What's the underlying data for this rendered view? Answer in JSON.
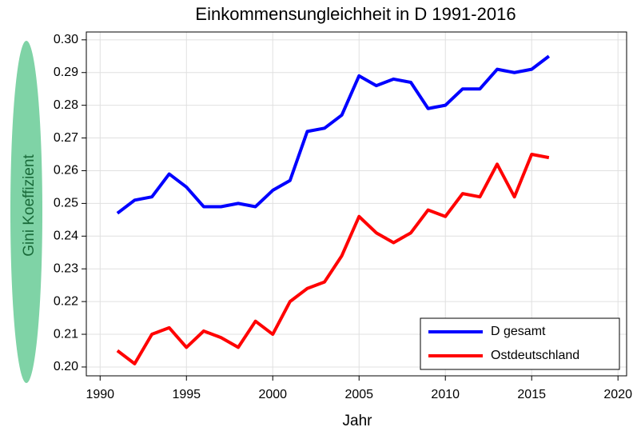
{
  "chart_data": {
    "type": "line",
    "title": "Einkommensungleichheit in D 1991-2016",
    "x_label": "Jahr",
    "y_label": "Gini Koeffizient",
    "x": [
      1991,
      1992,
      1993,
      1994,
      1995,
      1996,
      1997,
      1998,
      1999,
      2000,
      2001,
      2002,
      2003,
      2004,
      2005,
      2006,
      2007,
      2008,
      2009,
      2010,
      2011,
      2012,
      2013,
      2014,
      2015,
      2016
    ],
    "series": [
      {
        "name": "D gesamt",
        "color": "#0000ff",
        "values": [
          0.247,
          0.251,
          0.252,
          0.259,
          0.255,
          0.249,
          0.249,
          0.25,
          0.249,
          0.254,
          0.257,
          0.272,
          0.273,
          0.277,
          0.289,
          0.286,
          0.288,
          0.287,
          0.279,
          0.28,
          0.285,
          0.285,
          0.291,
          0.29,
          0.291,
          0.295
        ]
      },
      {
        "name": "Ostdeutschland",
        "color": "#ff0000",
        "values": [
          0.205,
          0.201,
          0.21,
          0.212,
          0.206,
          0.211,
          0.209,
          0.206,
          0.214,
          0.21,
          0.22,
          0.224,
          0.226,
          0.234,
          0.246,
          0.241,
          0.238,
          0.241,
          0.248,
          0.246,
          0.253,
          0.252,
          0.262,
          0.252,
          0.265,
          0.264
        ]
      }
    ],
    "xlim": [
      1989.2,
      2020.5
    ],
    "xticks": [
      1990,
      1995,
      2000,
      2005,
      2010,
      2015,
      2020
    ],
    "ylim": [
      0.1973,
      0.3024
    ],
    "yticks": [
      {
        "value": 0.2,
        "label": "0.20"
      },
      0.21,
      0.22,
      0.23,
      0.24,
      0.25,
      0.26,
      0.27,
      0.28,
      0.29,
      {
        "value": 0.3,
        "label": "0.30"
      }
    ],
    "grid": true,
    "legend": "lower right"
  }
}
